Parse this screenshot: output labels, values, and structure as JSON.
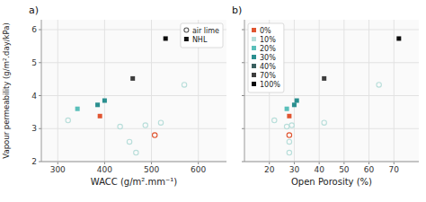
{
  "chart_data": [
    {
      "type": "scatter",
      "title": "a)",
      "x_label": "WACC (g/m².mm⁻¹)",
      "y_label": "Vapour permeability (g/m².day/kPa)",
      "xlim": [
        265,
        660
      ],
      "xticks": [
        300,
        400,
        500,
        600
      ],
      "ylim": [
        2.0,
        6.3
      ],
      "yticks": [
        2,
        3,
        4,
        5,
        6
      ],
      "grid": true,
      "legend": "upper right",
      "series": [
        {
          "name": "air lime",
          "marker": "circle",
          "color": "#555555",
          "x": [
            322,
            433,
            453,
            467,
            487,
            507,
            520,
            570
          ],
          "values": [
            3.25,
            3.06,
            2.6,
            2.27,
            3.1,
            2.8,
            3.18,
            4.33
          ],
          "colors": [
            "#b8deda",
            "#b8deda",
            "#b8deda",
            "#b8deda",
            "#b8deda",
            "#e05530",
            "#b8deda",
            "#b8deda"
          ]
        },
        {
          "name": "NHL",
          "marker": "square",
          "color": "#111111",
          "x": [
            390,
            342,
            385,
            400,
            460,
            530
          ],
          "values": [
            3.38,
            3.6,
            3.72,
            3.85,
            4.52,
            5.73
          ],
          "colors": [
            "#e05530",
            "#5abfba",
            "#2a8f8f",
            "#2a8f8f",
            "#3d3d3d",
            "#0a0a0a"
          ]
        }
      ]
    },
    {
      "type": "scatter",
      "title": "b)",
      "x_label": "Open Porosity (%)",
      "xlim": [
        10,
        80
      ],
      "xticks": [
        20,
        30,
        40,
        50,
        60,
        70
      ],
      "ylim": [
        2.0,
        6.3
      ],
      "yticks": [
        2,
        3,
        4,
        5,
        6
      ],
      "grid": true,
      "legend": "upper left",
      "tick_labels": "x",
      "legend_entries": [
        {
          "name": "0%",
          "color": "#e05530"
        },
        {
          "name": "10%",
          "color": "#b8deda"
        },
        {
          "name": "20%",
          "color": "#5abfba"
        },
        {
          "name": "30%",
          "color": "#2a8f8f"
        },
        {
          "name": "40%",
          "color": "#3a5f5f"
        },
        {
          "name": "70%",
          "color": "#3d3d3d"
        },
        {
          "name": "100%",
          "color": "#0a0a0a"
        }
      ],
      "series": [
        {
          "marker": "circle",
          "x": [
            22,
            27,
            28,
            28,
            29,
            28,
            42,
            64
          ],
          "values": [
            3.25,
            3.06,
            2.6,
            2.27,
            3.1,
            2.8,
            3.18,
            4.33
          ],
          "colors": [
            "#b8deda",
            "#b8deda",
            "#b8deda",
            "#b8deda",
            "#b8deda",
            "#e05530",
            "#b8deda",
            "#b8deda"
          ]
        },
        {
          "marker": "square",
          "x": [
            28,
            27,
            30,
            31,
            42,
            72
          ],
          "values": [
            3.38,
            3.6,
            3.72,
            3.85,
            4.52,
            5.73
          ],
          "colors": [
            "#e05530",
            "#5abfba",
            "#2a8f8f",
            "#2a8f8f",
            "#3d3d3d",
            "#0a0a0a"
          ]
        }
      ]
    }
  ]
}
